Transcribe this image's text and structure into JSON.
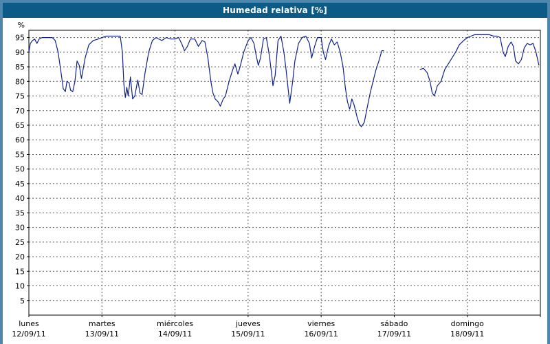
{
  "window": {
    "title": "Humedad relativa [%]"
  },
  "colors": {
    "title_bar": "#0b5b86",
    "frame": "#4e86ac",
    "plot_background": "#ffffff",
    "line": "#10208c"
  },
  "chart_data": {
    "type": "line",
    "title": "Humedad relativa [%]",
    "xlabel": "",
    "ylabel": "%",
    "xlim": [
      0,
      7
    ],
    "ylim": [
      0,
      97.5
    ],
    "y_ticks": [
      5,
      10,
      15,
      20,
      25,
      30,
      35,
      40,
      45,
      50,
      55,
      60,
      65,
      70,
      75,
      80,
      85,
      90,
      95
    ],
    "grid": "dashed",
    "legend_position": "none",
    "x_days": [
      {
        "name": "lunes",
        "date": "12/09/11"
      },
      {
        "name": "martes",
        "date": "13/09/11"
      },
      {
        "name": "miércoles",
        "date": "14/09/11"
      },
      {
        "name": "jueves",
        "date": "15/09/11"
      },
      {
        "name": "viernes",
        "date": "16/09/11"
      },
      {
        "name": "sábado",
        "date": "17/09/11"
      },
      {
        "name": "domingo",
        "date": "18/09/11"
      }
    ],
    "series": [
      {
        "name": "Humedad relativa [%]",
        "color": "#10208c",
        "units": "%",
        "points": [
          [
            0.0,
            90
          ],
          [
            0.02,
            93
          ],
          [
            0.05,
            94
          ],
          [
            0.08,
            94.5
          ],
          [
            0.11,
            93
          ],
          [
            0.14,
            94.5
          ],
          [
            0.18,
            95
          ],
          [
            0.26,
            95
          ],
          [
            0.32,
            95
          ],
          [
            0.36,
            94
          ],
          [
            0.4,
            90
          ],
          [
            0.44,
            83
          ],
          [
            0.47,
            77.5
          ],
          [
            0.5,
            76.5
          ],
          [
            0.52,
            80
          ],
          [
            0.55,
            79.5
          ],
          [
            0.57,
            77
          ],
          [
            0.6,
            76.5
          ],
          [
            0.63,
            80
          ],
          [
            0.66,
            87
          ],
          [
            0.69,
            85.5
          ],
          [
            0.72,
            81
          ],
          [
            0.77,
            88
          ],
          [
            0.82,
            92.5
          ],
          [
            0.88,
            94
          ],
          [
            0.95,
            94.5
          ],
          [
            1.0,
            95
          ],
          [
            1.06,
            95.5
          ],
          [
            1.16,
            95.5
          ],
          [
            1.25,
            95.5
          ],
          [
            1.28,
            90
          ],
          [
            1.3,
            79
          ],
          [
            1.32,
            74.5
          ],
          [
            1.34,
            78
          ],
          [
            1.36,
            75
          ],
          [
            1.39,
            81.5
          ],
          [
            1.42,
            74
          ],
          [
            1.45,
            75
          ],
          [
            1.49,
            80.5
          ],
          [
            1.52,
            76
          ],
          [
            1.55,
            75.5
          ],
          [
            1.59,
            83
          ],
          [
            1.64,
            90
          ],
          [
            1.69,
            94
          ],
          [
            1.74,
            95
          ],
          [
            1.82,
            94
          ],
          [
            1.88,
            95
          ],
          [
            1.94,
            94.5
          ],
          [
            2.0,
            94.5
          ],
          [
            2.05,
            95
          ],
          [
            2.09,
            93
          ],
          [
            2.13,
            90.5
          ],
          [
            2.17,
            92
          ],
          [
            2.21,
            94.5
          ],
          [
            2.27,
            94.5
          ],
          [
            2.32,
            92
          ],
          [
            2.37,
            94
          ],
          [
            2.41,
            93.5
          ],
          [
            2.45,
            88
          ],
          [
            2.49,
            80
          ],
          [
            2.52,
            76
          ],
          [
            2.55,
            74
          ],
          [
            2.59,
            73
          ],
          [
            2.62,
            71.5
          ],
          [
            2.66,
            74
          ],
          [
            2.69,
            75
          ],
          [
            2.74,
            80
          ],
          [
            2.79,
            84
          ],
          [
            2.82,
            86
          ],
          [
            2.86,
            82.5
          ],
          [
            2.89,
            85
          ],
          [
            2.94,
            90
          ],
          [
            3.0,
            94
          ],
          [
            3.04,
            95
          ],
          [
            3.08,
            93
          ],
          [
            3.11,
            89
          ],
          [
            3.14,
            85.5
          ],
          [
            3.17,
            88
          ],
          [
            3.21,
            94.5
          ],
          [
            3.25,
            95
          ],
          [
            3.29,
            89
          ],
          [
            3.32,
            83
          ],
          [
            3.34,
            78.5
          ],
          [
            3.37,
            82
          ],
          [
            3.41,
            94
          ],
          [
            3.45,
            95.5
          ],
          [
            3.49,
            90
          ],
          [
            3.52,
            84
          ],
          [
            3.55,
            77
          ],
          [
            3.57,
            72.5
          ],
          [
            3.61,
            80
          ],
          [
            3.64,
            87
          ],
          [
            3.69,
            93
          ],
          [
            3.74,
            95
          ],
          [
            3.79,
            95.5
          ],
          [
            3.84,
            93
          ],
          [
            3.87,
            88
          ],
          [
            3.91,
            92
          ],
          [
            3.95,
            95
          ],
          [
            4.0,
            95
          ],
          [
            4.03,
            90
          ],
          [
            4.06,
            87.5
          ],
          [
            4.1,
            92
          ],
          [
            4.14,
            94.5
          ],
          [
            4.18,
            92.5
          ],
          [
            4.22,
            93.5
          ],
          [
            4.26,
            90
          ],
          [
            4.3,
            85
          ],
          [
            4.33,
            78
          ],
          [
            4.36,
            73
          ],
          [
            4.39,
            70.5
          ],
          [
            4.42,
            74
          ],
          [
            4.45,
            72
          ],
          [
            4.49,
            68
          ],
          [
            4.52,
            65.5
          ],
          [
            4.55,
            64.5
          ],
          [
            4.59,
            66
          ],
          [
            4.63,
            71
          ],
          [
            4.67,
            76
          ],
          [
            4.71,
            80
          ],
          [
            4.75,
            84
          ],
          [
            4.79,
            87
          ],
          [
            4.83,
            90.5
          ],
          [
            4.86,
            90.5
          ],
          null,
          [
            5.35,
            84
          ],
          [
            5.4,
            84.5
          ],
          [
            5.45,
            83
          ],
          [
            5.49,
            80
          ],
          [
            5.52,
            76
          ],
          [
            5.55,
            75
          ],
          [
            5.59,
            78.5
          ],
          [
            5.64,
            80
          ],
          [
            5.69,
            84
          ],
          [
            5.74,
            86
          ],
          [
            5.79,
            88
          ],
          [
            5.84,
            90
          ],
          [
            5.89,
            92.5
          ],
          [
            5.95,
            94
          ],
          [
            6.0,
            95
          ],
          [
            6.05,
            95.5
          ],
          [
            6.1,
            96
          ],
          [
            6.2,
            96
          ],
          [
            6.3,
            96
          ],
          [
            6.36,
            95.5
          ],
          [
            6.41,
            95.5
          ],
          [
            6.45,
            95
          ],
          [
            6.49,
            90
          ],
          [
            6.52,
            88.5
          ],
          [
            6.56,
            92
          ],
          [
            6.6,
            93.5
          ],
          [
            6.63,
            92
          ],
          [
            6.66,
            87
          ],
          [
            6.7,
            86
          ],
          [
            6.74,
            87.5
          ],
          [
            6.78,
            91.5
          ],
          [
            6.82,
            93
          ],
          [
            6.86,
            92.5
          ],
          [
            6.9,
            93
          ],
          [
            6.94,
            90
          ],
          [
            6.98,
            85.5
          ]
        ]
      }
    ]
  }
}
